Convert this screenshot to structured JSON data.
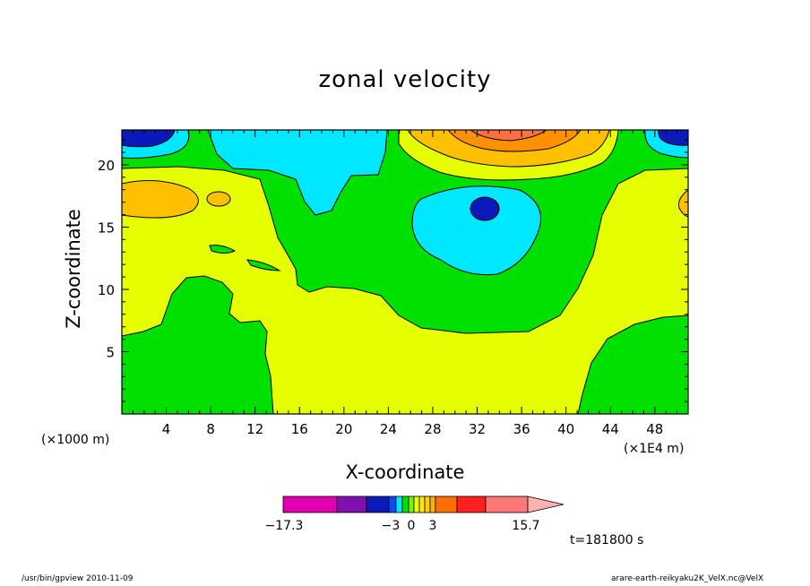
{
  "chart_data": {
    "type": "contour",
    "title": "zonal velocity",
    "xlabel": "X-coordinate",
    "ylabel": "Z-coordinate",
    "x_unit_left": "(×1000 m)",
    "x_unit_right": "(×1E4 m)",
    "xlim": [
      0,
      51
    ],
    "ylim": [
      0,
      22.8
    ],
    "x_ticks": [
      4,
      8,
      12,
      16,
      20,
      24,
      28,
      32,
      36,
      40,
      44,
      48
    ],
    "y_ticks": [
      5,
      10,
      15,
      20
    ],
    "colorbar": {
      "labels": [
        {
          "text": "−17.3",
          "value": -17.3
        },
        {
          "text": "−3",
          "value": -3
        },
        {
          "text": "0",
          "value": 0
        },
        {
          "text": "3",
          "value": 3
        },
        {
          "text": "15.7",
          "value": 15.7
        }
      ],
      "colors": [
        "#e000b0",
        "#8010b0",
        "#0a1ab8",
        "#0a4cf0",
        "#00e8ff",
        "#00e000",
        "#80f000",
        "#e6ff00",
        "#ffe800",
        "#ffd000",
        "#ffb000",
        "#ff7000",
        "#ff2020",
        "#ff7878",
        "#ffb0b0"
      ]
    },
    "timestamp": "t=181800 s",
    "colors": {
      "magenta": "#e000b0",
      "purple": "#8010b0",
      "blue": "#0a1ab8",
      "cyan": "#00e8ff",
      "green": "#00e000",
      "yellow": "#e6ff00",
      "orange": "#ffc000",
      "orange_dark": "#ff9000",
      "red": "#ff2020",
      "pink": "#ff7878"
    }
  },
  "footer": {
    "left": "/usr/bin/gpview  2010-11-09",
    "right": "arare-earth-reikyaku2K_VelX.nc@VelX"
  }
}
